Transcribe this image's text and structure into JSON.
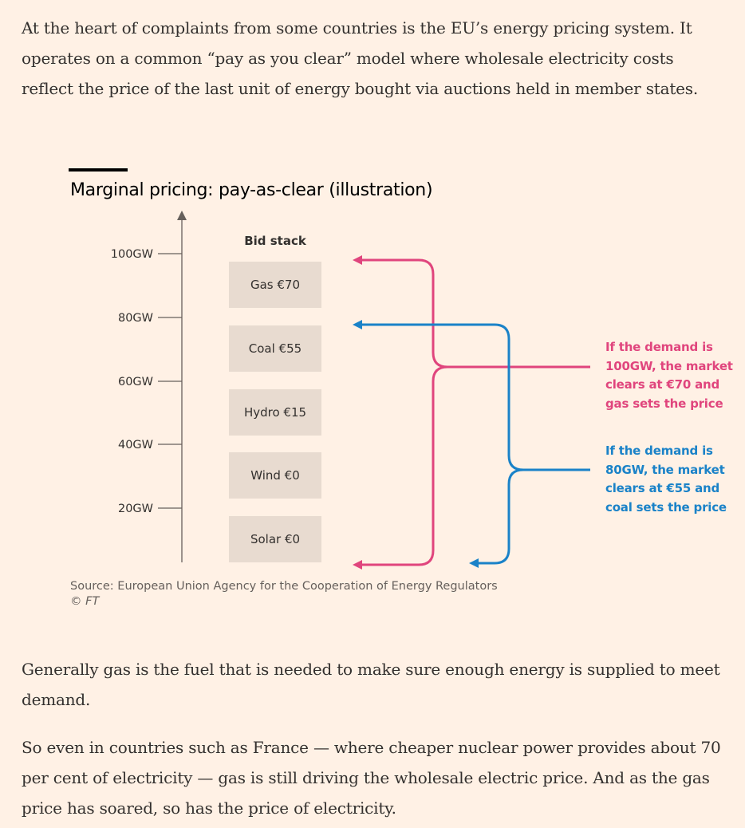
{
  "article": {
    "paragraph_1": "At the heart of complaints from some countries is the EU’s energy pricing system. It operates on a common “pay as you clear” model where wholesale electricity costs reflect the price of the last unit of energy bought via auctions held in member states.",
    "paragraph_2": "Generally gas is the fuel that is needed to make sure enough energy is supplied to meet demand.",
    "paragraph_3": "So even in countries such as France — where cheaper nuclear power provides about 70 per cent of electricity — gas is still driving the wholesale electric price. And as the gas price has soared, so has the price of electricity."
  },
  "chart": {
    "title": "Marginal pricing: pay-as-clear (illustration)",
    "stack_label": "Bid stack",
    "axis_ticks": [
      "100GW",
      "80GW",
      "60GW",
      "40GW",
      "20GW"
    ],
    "blocks": [
      "Gas €70",
      "Coal €55",
      "Hydro €15",
      "Wind €0",
      "Solar €0"
    ],
    "notes": {
      "gas": "If the demand is 100GW, the market clears at €70 and gas sets the price",
      "coal": "If the demand is 80GW, the market clears at €55 and coal sets the price"
    },
    "source": "Source: European Union Agency for the Cooperation of Energy Regulators",
    "credit": "© FT",
    "colors": {
      "gas_bracket": "#e0457d",
      "coal_bracket": "#1a82c8",
      "block_fill": "#e8dbd0",
      "background": "#fff1e5"
    }
  }
}
